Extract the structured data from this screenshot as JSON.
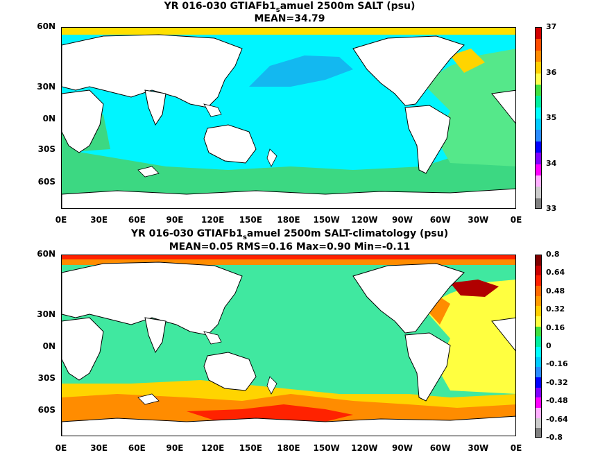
{
  "maps": [
    {
      "title_line1_pre": "YR 016-030 GTIAFb1",
      "title_sub": "s",
      "title_line1_post": "amuel 2500m SALT (psu)",
      "title_line2": "MEAN=34.79",
      "colorbar_labels": [
        "37",
        "36",
        "35",
        "34",
        "33"
      ],
      "colorbar_colors": [
        "#d40000",
        "#ff4d00",
        "#ff8c00",
        "#ffd000",
        "#ffff4d",
        "#40e040",
        "#00f0a0",
        "#00ffff",
        "#00ccff",
        "#2a8cff",
        "#0000ff",
        "#8000ff",
        "#ff00ff",
        "#ffb0ff",
        "#cccccc",
        "#808080"
      ],
      "colors": {
        "ocean": "#00f5ff",
        "north_pacific": "#13b8f0",
        "southern": "#3cd882",
        "atlantic": "#55e88a",
        "arctic": "#ffe000",
        "coast": "#ffd400"
      }
    },
    {
      "title_line1_pre": "YR 016-030 GTIAFb1",
      "title_sub": "s",
      "title_line1_post": "amuel 2500m SALT-climatology (psu)",
      "title_line2": "MEAN=0.05   RMS=0.16   Max=0.90   Min=-0.11",
      "colorbar_labels": [
        "0.8",
        "0.64",
        "0.48",
        "0.32",
        "0.16",
        "0",
        "-0.16",
        "-0.32",
        "-0.48",
        "-0.64",
        "-0.8"
      ],
      "colorbar_colors": [
        "#800000",
        "#cc0000",
        "#ff2000",
        "#ff6a00",
        "#ff9c00",
        "#ffd000",
        "#ffff40",
        "#40e040",
        "#00f0a0",
        "#00ffff",
        "#00ccff",
        "#2a8cff",
        "#0000ff",
        "#8000ff",
        "#ff00ff",
        "#ffb0ff",
        "#cccccc",
        "#808080"
      ],
      "colors": {
        "ocean": "#40e8a0",
        "band_yellow": "#ffd400",
        "band_orange": "#ff8c00",
        "band_red": "#ff2200",
        "band_dark": "#b00000",
        "atlantic_yellow": "#ffff40"
      }
    }
  ],
  "axes": {
    "lat_labels": [
      "60N",
      "30N",
      "0N",
      "30S",
      "60S"
    ],
    "lon_labels": [
      "0E",
      "30E",
      "60E",
      "90E",
      "120E",
      "150E",
      "180E",
      "150W",
      "120W",
      "90W",
      "60W",
      "30W",
      "0E"
    ]
  }
}
